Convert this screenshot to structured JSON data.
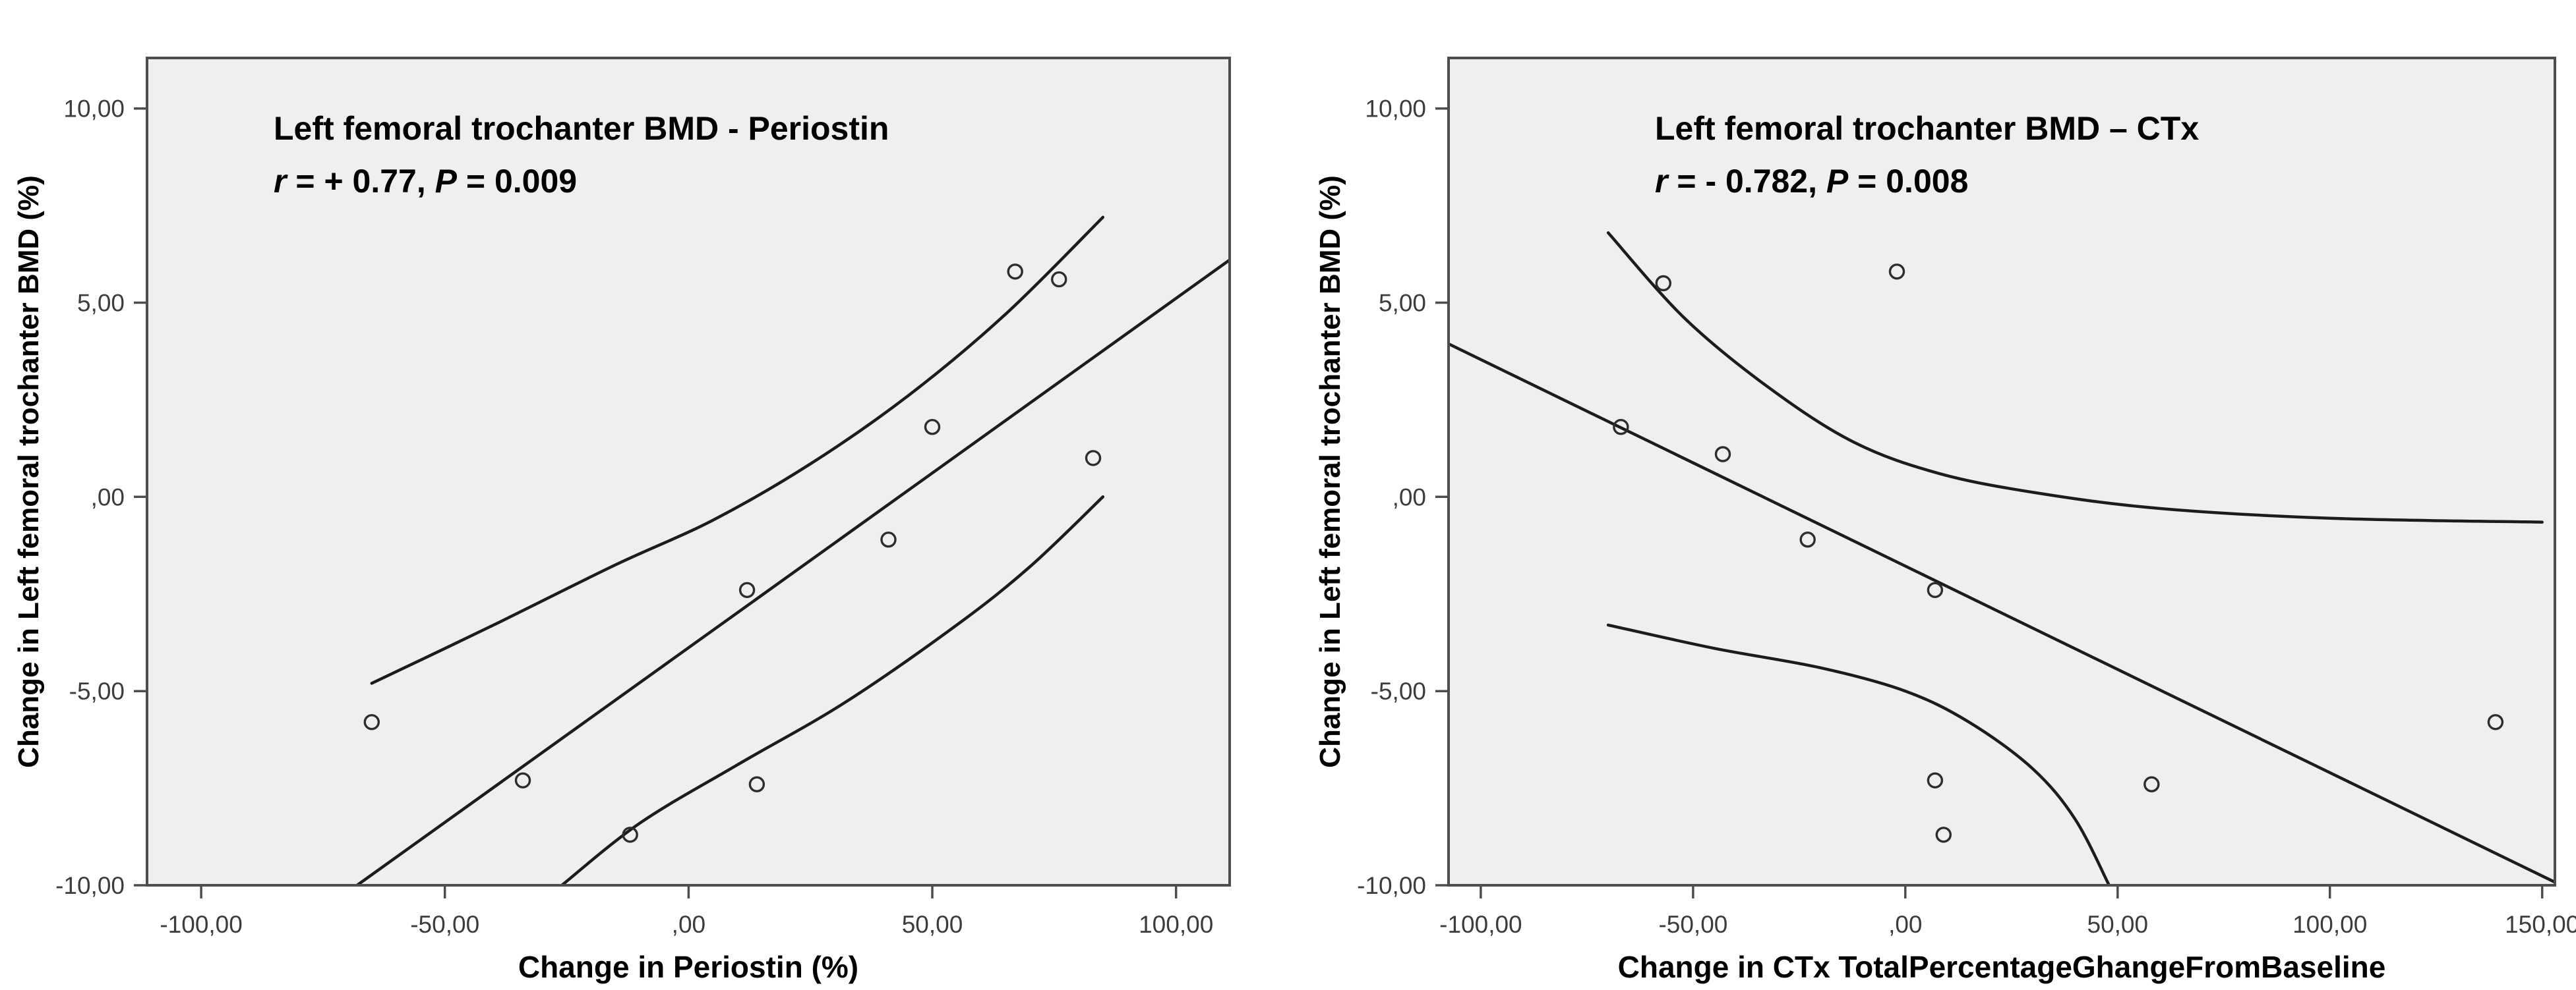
{
  "figure": {
    "background": "#ffffff",
    "styles": {
      "plot_bg": "#efefef",
      "frame_color": "#4d4d4d",
      "tick_label_color": "#3c3c3c",
      "title_color": "#000000",
      "curve_color": "#1c1c1c",
      "marker_color": "#2d2d2d"
    }
  },
  "chart_data": [
    {
      "type": "scatter",
      "title": "Left femoral trochanter BMD - Periostin",
      "stat": {
        "r_symbol": "r",
        "r_text": " = + 0.77, ",
        "p_symbol": "P",
        "p_text": " = 0.009"
      },
      "xlabel": "Change in Periostin (%)",
      "ylabel": "Change in Left femoral trochanter BMD (%)",
      "xlim": [
        -111.1,
        111.0
      ],
      "ylim": [
        -10,
        11.3
      ],
      "grid": false,
      "legend": "none",
      "x_ticks": [
        {
          "v": -100,
          "label": "-100,00"
        },
        {
          "v": -50,
          "label": "-50,00"
        },
        {
          "v": 0,
          "label": ",00"
        },
        {
          "v": 50,
          "label": "50,00"
        },
        {
          "v": 100,
          "label": "100,00"
        }
      ],
      "y_ticks": [
        {
          "v": 10,
          "label": "10,00"
        },
        {
          "v": 5,
          "label": "5,00"
        },
        {
          "v": 0,
          "label": ",00"
        },
        {
          "v": -5,
          "label": "-5,00"
        },
        {
          "v": -10,
          "label": "-10,00"
        }
      ],
      "points": [
        [
          -65,
          -5.8
        ],
        [
          -34,
          -7.3
        ],
        [
          -12,
          -8.7
        ],
        [
          12,
          -2.4
        ],
        [
          14,
          -7.4
        ],
        [
          41,
          -1.1
        ],
        [
          50,
          1.8
        ],
        [
          67,
          5.8
        ],
        [
          76,
          5.6
        ],
        [
          83,
          1.0
        ]
      ],
      "regression_line": [
        [
          -68,
          -10
        ],
        [
          111,
          6.1
        ]
      ],
      "ci_upper": [
        [
          -65,
          -4.8
        ],
        [
          -40,
          -3.3
        ],
        [
          -15,
          -1.75
        ],
        [
          5,
          -0.6
        ],
        [
          25,
          0.85
        ],
        [
          45,
          2.6
        ],
        [
          65,
          4.7
        ],
        [
          85,
          7.2
        ]
      ],
      "ci_lower": [
        [
          -26,
          -10
        ],
        [
          -10,
          -8.4
        ],
        [
          10,
          -6.9
        ],
        [
          32,
          -5.3
        ],
        [
          55,
          -3.3
        ],
        [
          70,
          -1.8
        ],
        [
          85,
          0.0
        ]
      ]
    },
    {
      "type": "scatter",
      "title": "Left femoral trochanter BMD – CTx",
      "stat": {
        "r_symbol": "r",
        "r_text": " = - 0.782, ",
        "p_symbol": "P",
        "p_text": " = 0.008"
      },
      "xlabel": "Change in CTx TotalPercentageGhangeFromBaseline",
      "ylabel": "Change in Left femoral trochanter BMD (%)",
      "xlim": [
        -107.6,
        153.0
      ],
      "ylim": [
        -10,
        11.3
      ],
      "grid": false,
      "legend": "none",
      "x_ticks": [
        {
          "v": -100,
          "label": "-100,00"
        },
        {
          "v": -50,
          "label": "-50,00"
        },
        {
          "v": 0,
          "label": ",00"
        },
        {
          "v": 50,
          "label": "50,00"
        },
        {
          "v": 100,
          "label": "100,00"
        },
        {
          "v": 150,
          "label": "150,00"
        }
      ],
      "y_ticks": [
        {
          "v": 10,
          "label": "10,00"
        },
        {
          "v": 5,
          "label": "5,00"
        },
        {
          "v": 0,
          "label": ",00"
        },
        {
          "v": -5,
          "label": "-5,00"
        },
        {
          "v": -10,
          "label": "-10,00"
        }
      ],
      "points": [
        [
          -67,
          1.8
        ],
        [
          -57,
          5.5
        ],
        [
          -43,
          1.1
        ],
        [
          -23,
          -1.1
        ],
        [
          -2,
          5.8
        ],
        [
          7,
          -2.4
        ],
        [
          7,
          -7.3
        ],
        [
          9,
          -8.7
        ],
        [
          58,
          -7.4
        ],
        [
          139,
          -5.8
        ]
      ],
      "regression_line": [
        [
          -107.6,
          3.94
        ],
        [
          153,
          -9.92
        ]
      ],
      "ci_upper": [
        [
          -70,
          6.8
        ],
        [
          -52,
          4.6
        ],
        [
          -32,
          2.8
        ],
        [
          -12,
          1.4
        ],
        [
          8,
          0.6
        ],
        [
          31,
          0.1
        ],
        [
          60,
          -0.3
        ],
        [
          100,
          -0.55
        ],
        [
          150,
          -0.65
        ]
      ],
      "ci_lower": [
        [
          -70,
          -3.3
        ],
        [
          -45,
          -3.9
        ],
        [
          -20,
          -4.4
        ],
        [
          0,
          -5.0
        ],
        [
          15,
          -5.8
        ],
        [
          30,
          -7.0
        ],
        [
          40,
          -8.3
        ],
        [
          48,
          -10
        ]
      ]
    }
  ]
}
